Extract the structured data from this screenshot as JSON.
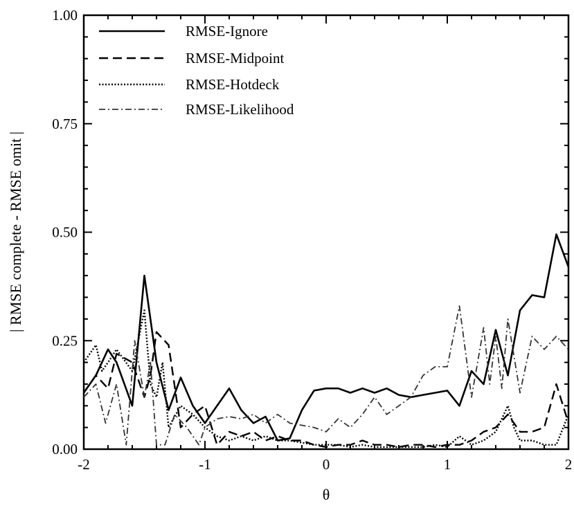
{
  "chart_data": {
    "type": "line",
    "title": "",
    "xlabel": "θ",
    "ylabel": "| RMSE complete - RMSE omit |",
    "xlim": [
      -2,
      2
    ],
    "ylim": [
      0,
      1
    ],
    "xticks": [
      "-2",
      "-1",
      "0",
      "1",
      "2"
    ],
    "yticks": [
      "0.00",
      "0.25",
      "0.50",
      "0.75",
      "1.00"
    ],
    "grid": false,
    "legend_position": "top-left",
    "series": [
      {
        "name": "RMSE-Ignore",
        "style": "solid",
        "x": [
          -2.0,
          -1.9,
          -1.8,
          -1.73,
          -1.6,
          -1.5,
          -1.4,
          -1.3,
          -1.2,
          -1.1,
          -1.0,
          -0.9,
          -0.8,
          -0.7,
          -0.6,
          -0.5,
          -0.4,
          -0.3,
          -0.2,
          -0.1,
          0.0,
          0.1,
          0.2,
          0.3,
          0.4,
          0.5,
          0.6,
          0.7,
          0.8,
          0.9,
          1.0,
          1.1,
          1.2,
          1.3,
          1.4,
          1.5,
          1.6,
          1.7,
          1.8,
          1.9,
          2.0
        ],
        "y": [
          0.13,
          0.17,
          0.23,
          0.2,
          0.1,
          0.4,
          0.2,
          0.09,
          0.165,
          0.1,
          0.06,
          0.1,
          0.14,
          0.09,
          0.06,
          0.075,
          0.02,
          0.025,
          0.09,
          0.135,
          0.14,
          0.14,
          0.13,
          0.14,
          0.13,
          0.14,
          0.125,
          0.12,
          0.125,
          0.13,
          0.135,
          0.1,
          0.18,
          0.15,
          0.275,
          0.17,
          0.32,
          0.355,
          0.35,
          0.495,
          0.42
        ]
      },
      {
        "name": "RMSE-Midpoint",
        "style": "dashed",
        "x": [
          -2.0,
          -1.9,
          -1.8,
          -1.73,
          -1.6,
          -1.5,
          -1.45,
          -1.4,
          -1.3,
          -1.2,
          -1.1,
          -1.0,
          -0.9,
          -0.8,
          -0.7,
          -0.6,
          -0.5,
          -0.4,
          -0.3,
          -0.2,
          -0.1,
          0.0,
          0.1,
          0.2,
          0.3,
          0.4,
          0.5,
          0.6,
          0.7,
          0.8,
          0.9,
          1.0,
          1.1,
          1.2,
          1.3,
          1.4,
          1.5,
          1.6,
          1.7,
          1.8,
          1.9,
          2.0
        ],
        "y": [
          0.13,
          0.17,
          0.14,
          0.22,
          0.2,
          0.12,
          0.17,
          0.27,
          0.24,
          0.05,
          0.08,
          0.1,
          0.01,
          0.04,
          0.03,
          0.04,
          0.02,
          0.03,
          0.02,
          0.02,
          0.01,
          0.005,
          0.01,
          0.01,
          0.02,
          0.01,
          0.01,
          0.005,
          0.01,
          0.01,
          0.005,
          0.01,
          0.01,
          0.02,
          0.04,
          0.05,
          0.08,
          0.04,
          0.04,
          0.05,
          0.15,
          0.06
        ]
      },
      {
        "name": "RMSE-Hotdeck",
        "style": "dotted",
        "x": [
          -2.0,
          -1.9,
          -1.85,
          -1.8,
          -1.73,
          -1.6,
          -1.5,
          -1.45,
          -1.4,
          -1.35,
          -1.3,
          -1.2,
          -1.1,
          -1.0,
          -0.9,
          -0.8,
          -0.7,
          -0.6,
          -0.5,
          -0.4,
          -0.3,
          -0.2,
          -0.1,
          0.0,
          0.1,
          0.2,
          0.3,
          0.4,
          0.5,
          0.6,
          0.7,
          0.8,
          0.9,
          1.0,
          1.1,
          1.2,
          1.3,
          1.4,
          1.5,
          1.55,
          1.6,
          1.7,
          1.8,
          1.9,
          2.0
        ],
        "y": [
          0.2,
          0.24,
          0.18,
          0.2,
          0.23,
          0.18,
          0.32,
          0.15,
          0.12,
          0.2,
          0.05,
          0.1,
          0.08,
          0.05,
          0.03,
          0.02,
          0.03,
          0.02,
          0.03,
          0.02,
          0.02,
          0.015,
          0.01,
          0.01,
          0.01,
          0.005,
          0.01,
          0.005,
          0.005,
          0.005,
          0.005,
          0.005,
          0.01,
          0.005,
          0.03,
          0.01,
          0.02,
          0.04,
          0.1,
          0.05,
          0.02,
          0.02,
          0.01,
          0.01,
          0.08
        ]
      },
      {
        "name": "RMSE-Likelihood",
        "style": "dash-dot",
        "x": [
          -2.0,
          -1.9,
          -1.82,
          -1.73,
          -1.65,
          -1.58,
          -1.5,
          -1.45,
          -1.4,
          -1.33,
          -1.25,
          -1.15,
          -1.05,
          -1.0,
          -0.9,
          -0.8,
          -0.7,
          -0.6,
          -0.5,
          -0.4,
          -0.3,
          -0.2,
          -0.1,
          0.0,
          0.1,
          0.2,
          0.3,
          0.4,
          0.5,
          0.6,
          0.7,
          0.8,
          0.9,
          1.0,
          1.1,
          1.2,
          1.25,
          1.3,
          1.35,
          1.4,
          1.45,
          1.5,
          1.6,
          1.7,
          1.8,
          1.9,
          2.0
        ],
        "y": [
          0.12,
          0.15,
          0.06,
          0.15,
          0.01,
          0.25,
          0.12,
          0.2,
          0.01,
          0.01,
          0.08,
          0.05,
          0.01,
          0.05,
          0.07,
          0.075,
          0.07,
          0.08,
          0.06,
          0.08,
          0.06,
          0.055,
          0.05,
          0.04,
          0.07,
          0.05,
          0.08,
          0.12,
          0.08,
          0.1,
          0.12,
          0.17,
          0.19,
          0.19,
          0.33,
          0.12,
          0.2,
          0.28,
          0.15,
          0.26,
          0.14,
          0.3,
          0.13,
          0.26,
          0.23,
          0.26,
          0.23
        ]
      }
    ]
  }
}
